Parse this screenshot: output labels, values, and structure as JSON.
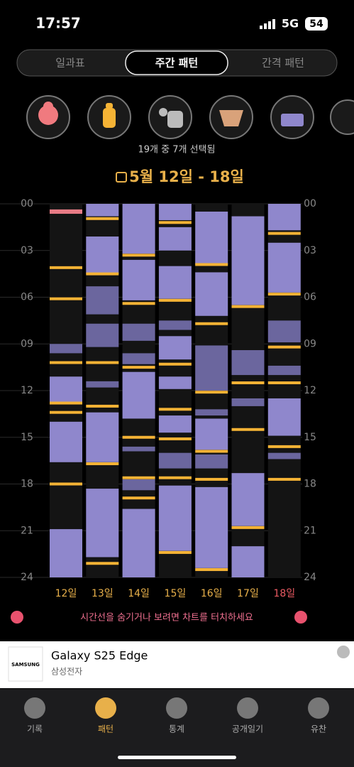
{
  "status_bar": {
    "time": "17:57",
    "network": "5G",
    "battery": "54"
  },
  "tabs": {
    "items": [
      "일과표",
      "주간 패턴",
      "간격 패턴"
    ],
    "active": 1
  },
  "selection_text": "19개 중 7개 선택됨",
  "chart_data": {
    "type": "timeline",
    "title": "5월 12일 - 18일",
    "ylim": [
      0,
      24
    ],
    "yticks": [
      {
        "value": 0,
        "label": "00"
      },
      {
        "value": 3,
        "label": "03"
      },
      {
        "value": 6,
        "label": "06"
      },
      {
        "value": 9,
        "label": "09"
      },
      12,
      15,
      18,
      21,
      24
    ],
    "colors": {
      "sleep": "#8f87cc",
      "nap": "#6b669e",
      "feed": "#f5b335",
      "other": "#e87c86",
      "label": "#e8b04a",
      "highlight": "#ea5a62"
    },
    "highlight_day": 6,
    "days": [
      {
        "label": "12일",
        "sleep": [
          [
            11.1,
            12.8
          ],
          [
            14.0,
            16.6
          ],
          [
            20.9,
            24
          ]
        ],
        "nap": [
          [
            9.0,
            9.6
          ]
        ],
        "feed": [
          4.1,
          6.1,
          10.2,
          12.8,
          13.4,
          18.0
        ],
        "other": [
          [
            0.36,
            0.64
          ]
        ]
      },
      {
        "label": "13일",
        "sleep": [
          [
            0,
            0.8
          ],
          [
            2.1,
            4.5
          ],
          [
            13.4,
            16.6
          ],
          [
            18.3,
            22.7
          ]
        ],
        "nap": [
          [
            5.3,
            7.1
          ],
          [
            7.7,
            9.2
          ],
          [
            11.4,
            11.8
          ]
        ],
        "feed": [
          0.95,
          4.5,
          10.2,
          13.0,
          16.7,
          23.1
        ],
        "other": []
      },
      {
        "label": "14일",
        "sleep": [
          [
            0,
            3.2
          ],
          [
            3.6,
            6.2
          ],
          [
            10.8,
            13.8
          ],
          [
            19.6,
            24
          ]
        ],
        "nap": [
          [
            7.7,
            8.8
          ],
          [
            9.6,
            10.3
          ],
          [
            15.6,
            15.9
          ],
          [
            17.7,
            18.4
          ]
        ],
        "feed": [
          3.3,
          6.4,
          10.5,
          15.0,
          17.6,
          18.9
        ],
        "other": []
      },
      {
        "label": "15일",
        "sleep": [
          [
            0,
            1.05
          ],
          [
            1.5,
            3.0
          ],
          [
            4.0,
            6.1
          ],
          [
            8.5,
            10.0
          ],
          [
            11.1,
            11.9
          ],
          [
            13.6,
            14.7
          ],
          [
            18.1,
            22.3
          ]
        ],
        "nap": [
          [
            7.5,
            8.1
          ],
          [
            16.0,
            17.0
          ]
        ],
        "feed": [
          1.2,
          6.2,
          10.3,
          13.2,
          15.1,
          17.6,
          22.4
        ],
        "other": []
      },
      {
        "label": "16일",
        "sleep": [
          [
            0.5,
            3.9
          ],
          [
            4.4,
            7.2
          ],
          [
            13.8,
            15.8
          ],
          [
            18.2,
            23.4
          ]
        ],
        "nap": [
          [
            9.1,
            12.0
          ],
          [
            13.2,
            13.6
          ],
          [
            16.1,
            17.0
          ]
        ],
        "feed": [
          3.9,
          7.7,
          12.1,
          15.9,
          17.7,
          23.5
        ],
        "other": []
      },
      {
        "label": "17일",
        "sleep": [
          [
            0.8,
            6.5
          ],
          [
            17.3,
            20.7
          ],
          [
            22.0,
            24
          ]
        ],
        "nap": [
          [
            9.4,
            11.0
          ],
          [
            12.5,
            13.0
          ]
        ],
        "feed": [
          6.6,
          11.5,
          14.5,
          20.8
        ],
        "other": []
      },
      {
        "label": "18일",
        "sleep": [
          [
            0,
            1.7
          ],
          [
            2.5,
            5.7
          ],
          [
            12.5,
            14.9
          ]
        ],
        "nap": [
          [
            7.5,
            8.9
          ],
          [
            10.4,
            11.0
          ],
          [
            16.0,
            16.4
          ]
        ],
        "feed": [
          1.9,
          5.8,
          9.2,
          11.5,
          15.6,
          17.7
        ],
        "other": []
      }
    ]
  },
  "hint": "시간선을 숨기거나 보려면 차트를 터치하세요",
  "ad": {
    "brand": "SAMSUNG",
    "title": "Galaxy S25 Edge",
    "subtitle": "삼성전자"
  },
  "nav": {
    "items": [
      "기록",
      "패턴",
      "통계",
      "공개일기",
      "유찬"
    ],
    "active": 1
  }
}
